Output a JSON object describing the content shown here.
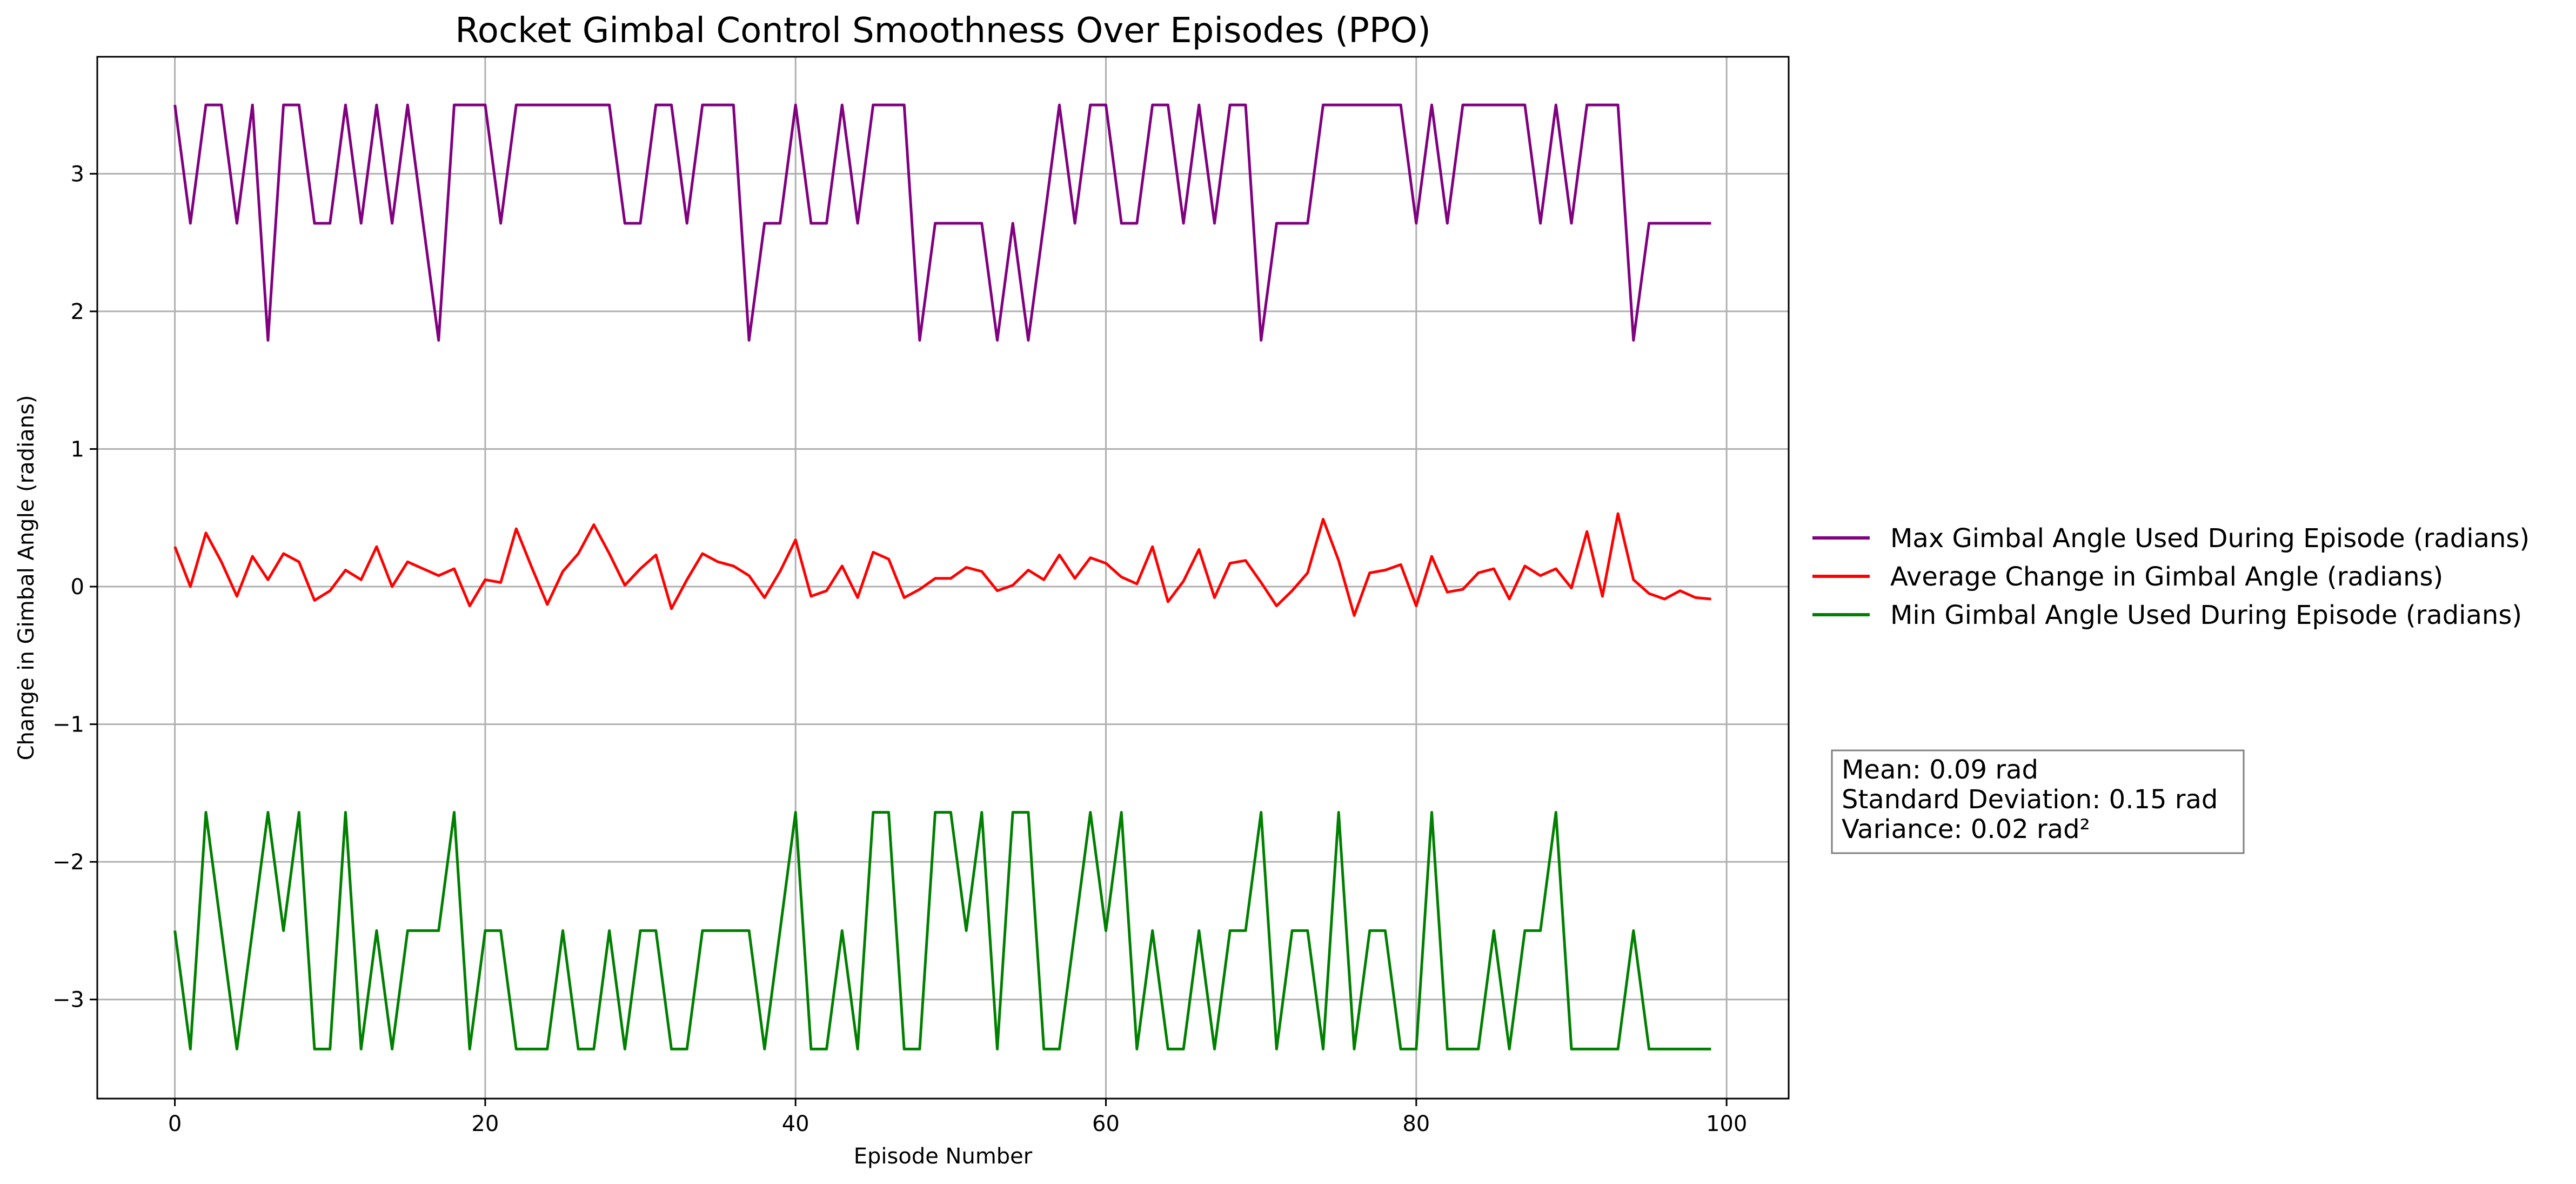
{
  "chart_data": {
    "type": "line",
    "title": "Rocket Gimbal Control Smoothness Over Episodes (PPO)",
    "xlabel": "Episode Number",
    "ylabel": "Change in Gimbal Angle (radians)",
    "xlim": [
      -5,
      104
    ],
    "ylim": [
      -3.72,
      3.85
    ],
    "xticks": [
      0,
      20,
      40,
      60,
      80,
      100
    ],
    "yticks": [
      -3,
      -2,
      -1,
      0,
      1,
      2,
      3
    ],
    "grid": true,
    "legend_position": "right",
    "series": [
      {
        "name": "Max Gimbal Angle Used During Episode (radians)",
        "color": "#800080",
        "values": [
          3.5,
          2.64,
          3.5,
          3.5,
          2.64,
          3.5,
          1.79,
          3.5,
          3.5,
          2.64,
          2.64,
          3.5,
          2.64,
          3.5,
          2.64,
          3.5,
          2.64,
          1.79,
          3.5,
          3.5,
          3.5,
          2.64,
          3.5,
          3.5,
          3.5,
          3.5,
          3.5,
          3.5,
          3.5,
          2.64,
          2.64,
          3.5,
          3.5,
          2.64,
          3.5,
          3.5,
          3.5,
          1.79,
          2.64,
          2.64,
          3.5,
          2.64,
          2.64,
          3.5,
          2.64,
          3.5,
          3.5,
          3.5,
          1.79,
          2.64,
          2.64,
          2.64,
          2.64,
          1.79,
          2.64,
          1.79,
          2.64,
          3.5,
          2.64,
          3.5,
          3.5,
          2.64,
          2.64,
          3.5,
          3.5,
          2.64,
          3.5,
          2.64,
          3.5,
          3.5,
          1.79,
          2.64,
          2.64,
          2.64,
          3.5,
          3.5,
          3.5,
          3.5,
          3.5,
          3.5,
          2.64,
          3.5,
          2.64,
          3.5,
          3.5,
          3.5,
          3.5,
          3.5,
          2.64,
          3.5,
          2.64,
          3.5,
          3.5,
          3.5,
          1.79,
          2.64,
          2.64,
          2.64,
          2.64,
          2.64
        ]
      },
      {
        "name": "Average Change in Gimbal Angle (radians)",
        "color": "#ff0000",
        "values": [
          0.29,
          0.0,
          0.39,
          0.18,
          -0.07,
          0.22,
          0.05,
          0.24,
          0.18,
          -0.1,
          -0.03,
          0.12,
          0.05,
          0.29,
          0.0,
          0.18,
          0.13,
          0.08,
          0.13,
          -0.14,
          0.05,
          0.03,
          0.42,
          0.14,
          -0.13,
          0.11,
          0.24,
          0.45,
          0.24,
          0.01,
          0.13,
          0.23,
          -0.16,
          0.05,
          0.24,
          0.18,
          0.15,
          0.08,
          -0.08,
          0.11,
          0.34,
          -0.07,
          -0.03,
          0.15,
          -0.08,
          0.25,
          0.2,
          -0.08,
          -0.02,
          0.06,
          0.06,
          0.14,
          0.11,
          -0.03,
          0.01,
          0.12,
          0.05,
          0.23,
          0.06,
          0.21,
          0.17,
          0.07,
          0.02,
          0.29,
          -0.11,
          0.04,
          0.27,
          -0.08,
          0.17,
          0.19,
          0.03,
          -0.14,
          -0.03,
          0.1,
          0.49,
          0.19,
          -0.21,
          0.1,
          0.12,
          0.16,
          -0.14,
          0.22,
          -0.04,
          -0.02,
          0.1,
          0.13,
          -0.09,
          0.15,
          0.08,
          0.13,
          -0.01,
          0.4,
          -0.07,
          0.53,
          0.05,
          -0.05,
          -0.09,
          -0.03,
          -0.08,
          -0.09
        ]
      },
      {
        "name": "Min Gimbal Angle Used During Episode (radians)",
        "color": "#008000",
        "values": [
          -2.5,
          -3.36,
          -1.64,
          -2.5,
          -3.36,
          -2.5,
          -1.64,
          -2.5,
          -1.64,
          -3.36,
          -3.36,
          -1.64,
          -3.36,
          -2.5,
          -3.36,
          -2.5,
          -2.5,
          -2.5,
          -1.64,
          -3.36,
          -2.5,
          -2.5,
          -3.36,
          -3.36,
          -3.36,
          -2.5,
          -3.36,
          -3.36,
          -2.5,
          -3.36,
          -2.5,
          -2.5,
          -3.36,
          -3.36,
          -2.5,
          -2.5,
          -2.5,
          -2.5,
          -3.36,
          -2.5,
          -1.64,
          -3.36,
          -3.36,
          -2.5,
          -3.36,
          -1.64,
          -1.64,
          -3.36,
          -3.36,
          -1.64,
          -1.64,
          -2.5,
          -1.64,
          -3.36,
          -1.64,
          -1.64,
          -3.36,
          -3.36,
          -2.5,
          -1.64,
          -2.5,
          -1.64,
          -3.36,
          -2.5,
          -3.36,
          -3.36,
          -2.5,
          -3.36,
          -2.5,
          -2.5,
          -1.64,
          -3.36,
          -2.5,
          -2.5,
          -3.36,
          -1.64,
          -3.36,
          -2.5,
          -2.5,
          -3.36,
          -3.36,
          -1.64,
          -3.36,
          -3.36,
          -3.36,
          -2.5,
          -3.36,
          -2.5,
          -2.5,
          -1.64,
          -3.36,
          -3.36,
          -3.36,
          -3.36,
          -2.5,
          -3.36,
          -3.36,
          -3.36,
          -3.36,
          -3.36
        ]
      }
    ],
    "stats_box": [
      "Mean: 0.09 rad",
      "Standard Deviation: 0.15 rad",
      "Variance: 0.02 rad²"
    ]
  }
}
